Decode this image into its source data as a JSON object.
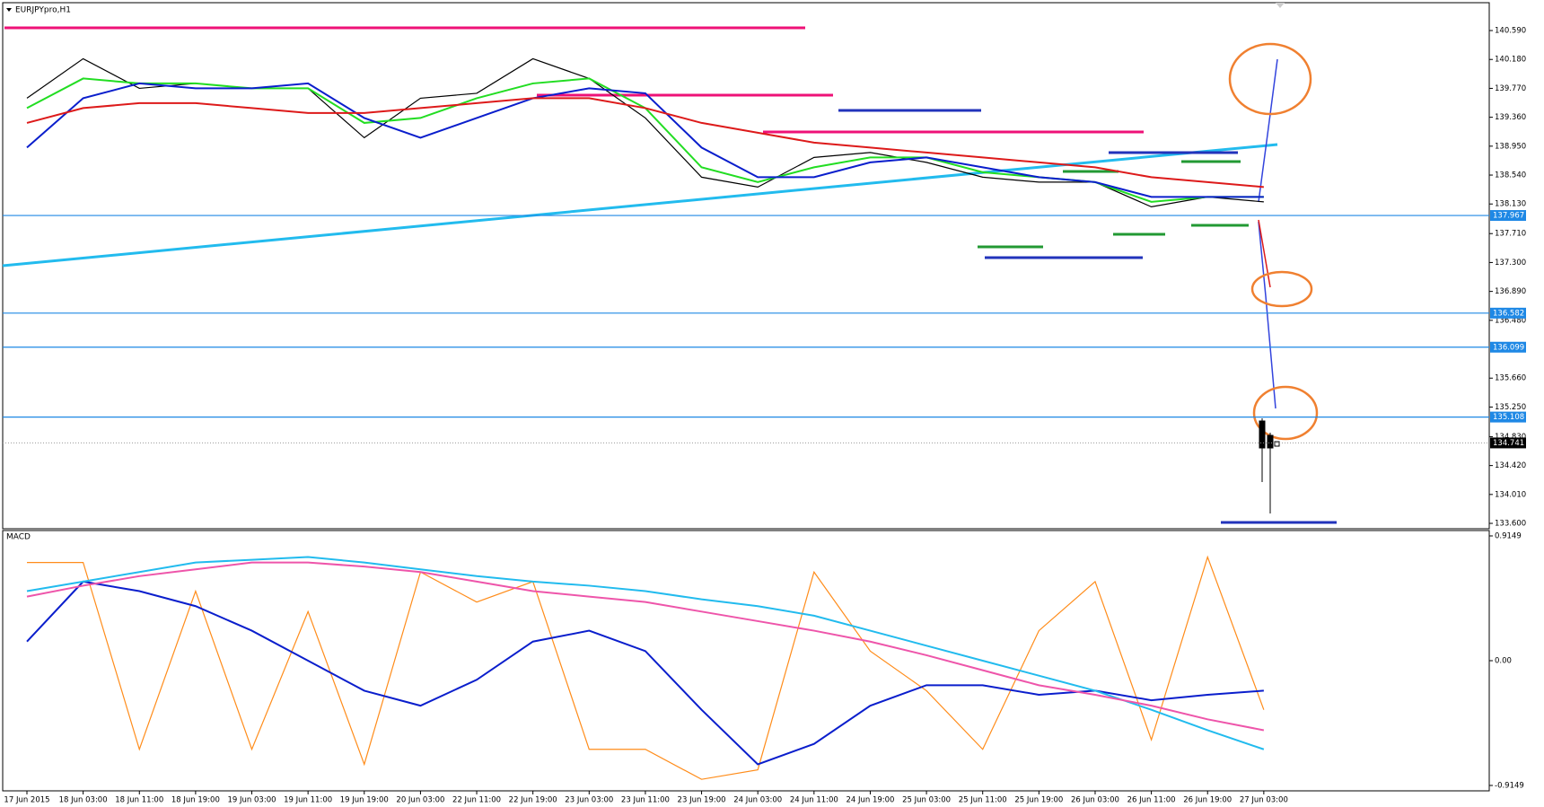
{
  "chart_data": [
    {
      "type": "line",
      "title": "EURJPYpro,H1",
      "categories": [
        "17 Jun 2015",
        "18 Jun 03:00",
        "18 Jun 11:00",
        "18 Jun 19:00",
        "19 Jun 03:00",
        "19 Jun 11:00",
        "19 Jun 19:00",
        "20 Jun 03:00",
        "22 Jun 11:00",
        "22 Jun 19:00",
        "23 Jun 03:00",
        "23 Jun 11:00",
        "23 Jun 19:00",
        "24 Jun 03:00",
        "24 Jun 11:00",
        "24 Jun 19:00",
        "25 Jun 03:00",
        "25 Jun 11:00",
        "25 Jun 19:00",
        "26 Jun 03:00",
        "26 Jun 11:00",
        "26 Jun 19:00",
        "27 Jun 03:00"
      ],
      "series": [
        {
          "color": "#000000",
          "values": [
            139.63,
            140.19,
            139.77,
            139.84,
            139.77,
            139.77,
            139.07,
            139.63,
            139.7,
            140.19,
            139.91,
            139.35,
            138.51,
            138.37,
            138.79,
            138.86,
            138.72,
            138.51,
            138.44,
            138.44,
            138.09,
            138.23,
            138.16
          ]
        },
        {
          "color": "#22dd22",
          "values": [
            139.49,
            139.91,
            139.84,
            139.84,
            139.77,
            139.77,
            139.28,
            139.35,
            139.63,
            139.84,
            139.91,
            139.49,
            138.65,
            138.44,
            138.65,
            138.79,
            138.79,
            138.58,
            138.51,
            138.44,
            138.16,
            138.23,
            138.23
          ]
        },
        {
          "color": "#0a1ecc",
          "values": [
            138.93,
            139.63,
            139.84,
            139.77,
            139.77,
            139.84,
            139.35,
            139.07,
            139.35,
            139.63,
            139.77,
            139.7,
            138.93,
            138.51,
            138.51,
            138.72,
            138.79,
            138.65,
            138.51,
            138.44,
            138.23,
            138.23,
            138.23
          ]
        },
        {
          "color": "#dd1a1a",
          "values": [
            139.28,
            139.49,
            139.56,
            139.56,
            139.49,
            139.42,
            139.42,
            139.49,
            139.56,
            139.63,
            139.63,
            139.49,
            139.28,
            139.14,
            139.0,
            138.93,
            138.86,
            138.79,
            138.72,
            138.65,
            138.51,
            138.44,
            138.37
          ]
        }
      ],
      "ylim": [
        133.524,
        140.985
      ],
      "yticks": [
        {
          "value": 140.59,
          "label": "140.590"
        },
        {
          "value": 140.18,
          "label": "140.180"
        },
        {
          "value": 139.77,
          "label": "139.770"
        },
        {
          "value": 139.36,
          "label": "139.360"
        },
        {
          "value": 138.95,
          "label": "138.950"
        },
        {
          "value": 138.54,
          "label": "138.540"
        },
        {
          "value": 138.13,
          "label": "138.130"
        },
        {
          "value": 137.71,
          "label": "137.710"
        },
        {
          "value": 137.3,
          "label": "137.300"
        },
        {
          "value": 136.89,
          "label": "136.890"
        },
        {
          "value": 136.48,
          "label": "136.480"
        },
        {
          "value": 135.66,
          "label": "135.660"
        },
        {
          "value": 135.25,
          "label": "135.250"
        },
        {
          "value": 134.83,
          "label": "134.830"
        },
        {
          "value": 134.42,
          "label": "134.420"
        },
        {
          "value": 134.01,
          "label": "134.010"
        },
        {
          "value": 133.6,
          "label": "133.600"
        }
      ],
      "levels": [
        137.967,
        136.582,
        136.099,
        135.108
      ],
      "current_price": 134.741
    },
    {
      "type": "line",
      "title": "MACD",
      "series": [
        {
          "color": "#ff8c1a",
          "values": [
            0.72,
            0.72,
            -0.65,
            0.51,
            -0.65,
            0.36,
            -0.76,
            0.65,
            0.43,
            0.58,
            -0.65,
            -0.65,
            -0.87,
            -0.8,
            0.65,
            0.07,
            -0.22,
            -0.65,
            0.22,
            0.58,
            -0.58,
            0.76,
            -0.36
          ]
        },
        {
          "color": "#0a1ecc",
          "values": [
            0.14,
            0.58,
            0.51,
            0.4,
            0.22,
            0.0,
            -0.22,
            -0.33,
            -0.14,
            0.14,
            0.22,
            0.07,
            -0.36,
            -0.76,
            -0.61,
            -0.33,
            -0.18,
            -0.18,
            -0.25,
            -0.22,
            -0.29,
            -0.25,
            -0.22
          ]
        },
        {
          "color": "#22bbee",
          "values": [
            0.51,
            0.58,
            0.65,
            0.72,
            0.74,
            0.76,
            0.72,
            0.67,
            0.62,
            0.58,
            0.55,
            0.51,
            0.45,
            0.4,
            0.33,
            0.22,
            0.11,
            0.0,
            -0.11,
            -0.22,
            -0.36,
            -0.51,
            -0.65
          ]
        },
        {
          "color": "#ee55aa",
          "values": [
            0.47,
            0.55,
            0.62,
            0.67,
            0.72,
            0.72,
            0.69,
            0.65,
            0.58,
            0.51,
            0.47,
            0.43,
            0.36,
            0.29,
            0.22,
            0.14,
            0.04,
            -0.07,
            -0.18,
            -0.25,
            -0.33,
            -0.43,
            -0.51
          ]
        }
      ],
      "ylim": [
        -0.9544,
        0.9544
      ],
      "yticks": [
        0.9149,
        {
          "value": 0.0,
          "label": "0.00"
        },
        -0.9149
      ]
    }
  ]
}
